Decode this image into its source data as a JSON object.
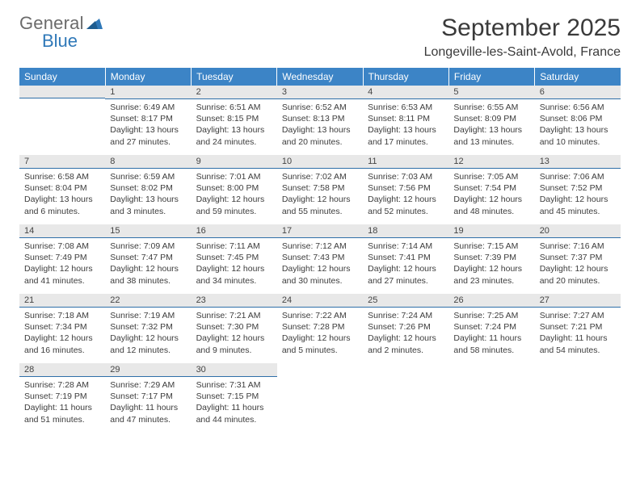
{
  "brand": {
    "gray": "General",
    "blue": "Blue"
  },
  "title": "September 2025",
  "location": "Longeville-les-Saint-Avold, France",
  "colors": {
    "header_bg": "#3c84c6",
    "header_text": "#ffffff",
    "daybar_bg": "#e8e8e8",
    "daybar_border": "#2f6fa8",
    "text": "#3c3c3c",
    "logo_gray": "#6b6b6b",
    "logo_blue": "#2f78b8"
  },
  "weekdays": [
    "Sunday",
    "Monday",
    "Tuesday",
    "Wednesday",
    "Thursday",
    "Friday",
    "Saturday"
  ],
  "weeks": [
    [
      {
        "n": "",
        "sr": "",
        "ss": "",
        "dl1": "",
        "dl2": ""
      },
      {
        "n": "1",
        "sr": "Sunrise: 6:49 AM",
        "ss": "Sunset: 8:17 PM",
        "dl1": "Daylight: 13 hours",
        "dl2": "and 27 minutes."
      },
      {
        "n": "2",
        "sr": "Sunrise: 6:51 AM",
        "ss": "Sunset: 8:15 PM",
        "dl1": "Daylight: 13 hours",
        "dl2": "and 24 minutes."
      },
      {
        "n": "3",
        "sr": "Sunrise: 6:52 AM",
        "ss": "Sunset: 8:13 PM",
        "dl1": "Daylight: 13 hours",
        "dl2": "and 20 minutes."
      },
      {
        "n": "4",
        "sr": "Sunrise: 6:53 AM",
        "ss": "Sunset: 8:11 PM",
        "dl1": "Daylight: 13 hours",
        "dl2": "and 17 minutes."
      },
      {
        "n": "5",
        "sr": "Sunrise: 6:55 AM",
        "ss": "Sunset: 8:09 PM",
        "dl1": "Daylight: 13 hours",
        "dl2": "and 13 minutes."
      },
      {
        "n": "6",
        "sr": "Sunrise: 6:56 AM",
        "ss": "Sunset: 8:06 PM",
        "dl1": "Daylight: 13 hours",
        "dl2": "and 10 minutes."
      }
    ],
    [
      {
        "n": "7",
        "sr": "Sunrise: 6:58 AM",
        "ss": "Sunset: 8:04 PM",
        "dl1": "Daylight: 13 hours",
        "dl2": "and 6 minutes."
      },
      {
        "n": "8",
        "sr": "Sunrise: 6:59 AM",
        "ss": "Sunset: 8:02 PM",
        "dl1": "Daylight: 13 hours",
        "dl2": "and 3 minutes."
      },
      {
        "n": "9",
        "sr": "Sunrise: 7:01 AM",
        "ss": "Sunset: 8:00 PM",
        "dl1": "Daylight: 12 hours",
        "dl2": "and 59 minutes."
      },
      {
        "n": "10",
        "sr": "Sunrise: 7:02 AM",
        "ss": "Sunset: 7:58 PM",
        "dl1": "Daylight: 12 hours",
        "dl2": "and 55 minutes."
      },
      {
        "n": "11",
        "sr": "Sunrise: 7:03 AM",
        "ss": "Sunset: 7:56 PM",
        "dl1": "Daylight: 12 hours",
        "dl2": "and 52 minutes."
      },
      {
        "n": "12",
        "sr": "Sunrise: 7:05 AM",
        "ss": "Sunset: 7:54 PM",
        "dl1": "Daylight: 12 hours",
        "dl2": "and 48 minutes."
      },
      {
        "n": "13",
        "sr": "Sunrise: 7:06 AM",
        "ss": "Sunset: 7:52 PM",
        "dl1": "Daylight: 12 hours",
        "dl2": "and 45 minutes."
      }
    ],
    [
      {
        "n": "14",
        "sr": "Sunrise: 7:08 AM",
        "ss": "Sunset: 7:49 PM",
        "dl1": "Daylight: 12 hours",
        "dl2": "and 41 minutes."
      },
      {
        "n": "15",
        "sr": "Sunrise: 7:09 AM",
        "ss": "Sunset: 7:47 PM",
        "dl1": "Daylight: 12 hours",
        "dl2": "and 38 minutes."
      },
      {
        "n": "16",
        "sr": "Sunrise: 7:11 AM",
        "ss": "Sunset: 7:45 PM",
        "dl1": "Daylight: 12 hours",
        "dl2": "and 34 minutes."
      },
      {
        "n": "17",
        "sr": "Sunrise: 7:12 AM",
        "ss": "Sunset: 7:43 PM",
        "dl1": "Daylight: 12 hours",
        "dl2": "and 30 minutes."
      },
      {
        "n": "18",
        "sr": "Sunrise: 7:14 AM",
        "ss": "Sunset: 7:41 PM",
        "dl1": "Daylight: 12 hours",
        "dl2": "and 27 minutes."
      },
      {
        "n": "19",
        "sr": "Sunrise: 7:15 AM",
        "ss": "Sunset: 7:39 PM",
        "dl1": "Daylight: 12 hours",
        "dl2": "and 23 minutes."
      },
      {
        "n": "20",
        "sr": "Sunrise: 7:16 AM",
        "ss": "Sunset: 7:37 PM",
        "dl1": "Daylight: 12 hours",
        "dl2": "and 20 minutes."
      }
    ],
    [
      {
        "n": "21",
        "sr": "Sunrise: 7:18 AM",
        "ss": "Sunset: 7:34 PM",
        "dl1": "Daylight: 12 hours",
        "dl2": "and 16 minutes."
      },
      {
        "n": "22",
        "sr": "Sunrise: 7:19 AM",
        "ss": "Sunset: 7:32 PM",
        "dl1": "Daylight: 12 hours",
        "dl2": "and 12 minutes."
      },
      {
        "n": "23",
        "sr": "Sunrise: 7:21 AM",
        "ss": "Sunset: 7:30 PM",
        "dl1": "Daylight: 12 hours",
        "dl2": "and 9 minutes."
      },
      {
        "n": "24",
        "sr": "Sunrise: 7:22 AM",
        "ss": "Sunset: 7:28 PM",
        "dl1": "Daylight: 12 hours",
        "dl2": "and 5 minutes."
      },
      {
        "n": "25",
        "sr": "Sunrise: 7:24 AM",
        "ss": "Sunset: 7:26 PM",
        "dl1": "Daylight: 12 hours",
        "dl2": "and 2 minutes."
      },
      {
        "n": "26",
        "sr": "Sunrise: 7:25 AM",
        "ss": "Sunset: 7:24 PM",
        "dl1": "Daylight: 11 hours",
        "dl2": "and 58 minutes."
      },
      {
        "n": "27",
        "sr": "Sunrise: 7:27 AM",
        "ss": "Sunset: 7:21 PM",
        "dl1": "Daylight: 11 hours",
        "dl2": "and 54 minutes."
      }
    ],
    [
      {
        "n": "28",
        "sr": "Sunrise: 7:28 AM",
        "ss": "Sunset: 7:19 PM",
        "dl1": "Daylight: 11 hours",
        "dl2": "and 51 minutes."
      },
      {
        "n": "29",
        "sr": "Sunrise: 7:29 AM",
        "ss": "Sunset: 7:17 PM",
        "dl1": "Daylight: 11 hours",
        "dl2": "and 47 minutes."
      },
      {
        "n": "30",
        "sr": "Sunrise: 7:31 AM",
        "ss": "Sunset: 7:15 PM",
        "dl1": "Daylight: 11 hours",
        "dl2": "and 44 minutes."
      },
      {
        "n": "",
        "sr": "",
        "ss": "",
        "dl1": "",
        "dl2": ""
      },
      {
        "n": "",
        "sr": "",
        "ss": "",
        "dl1": "",
        "dl2": ""
      },
      {
        "n": "",
        "sr": "",
        "ss": "",
        "dl1": "",
        "dl2": ""
      },
      {
        "n": "",
        "sr": "",
        "ss": "",
        "dl1": "",
        "dl2": ""
      }
    ]
  ]
}
